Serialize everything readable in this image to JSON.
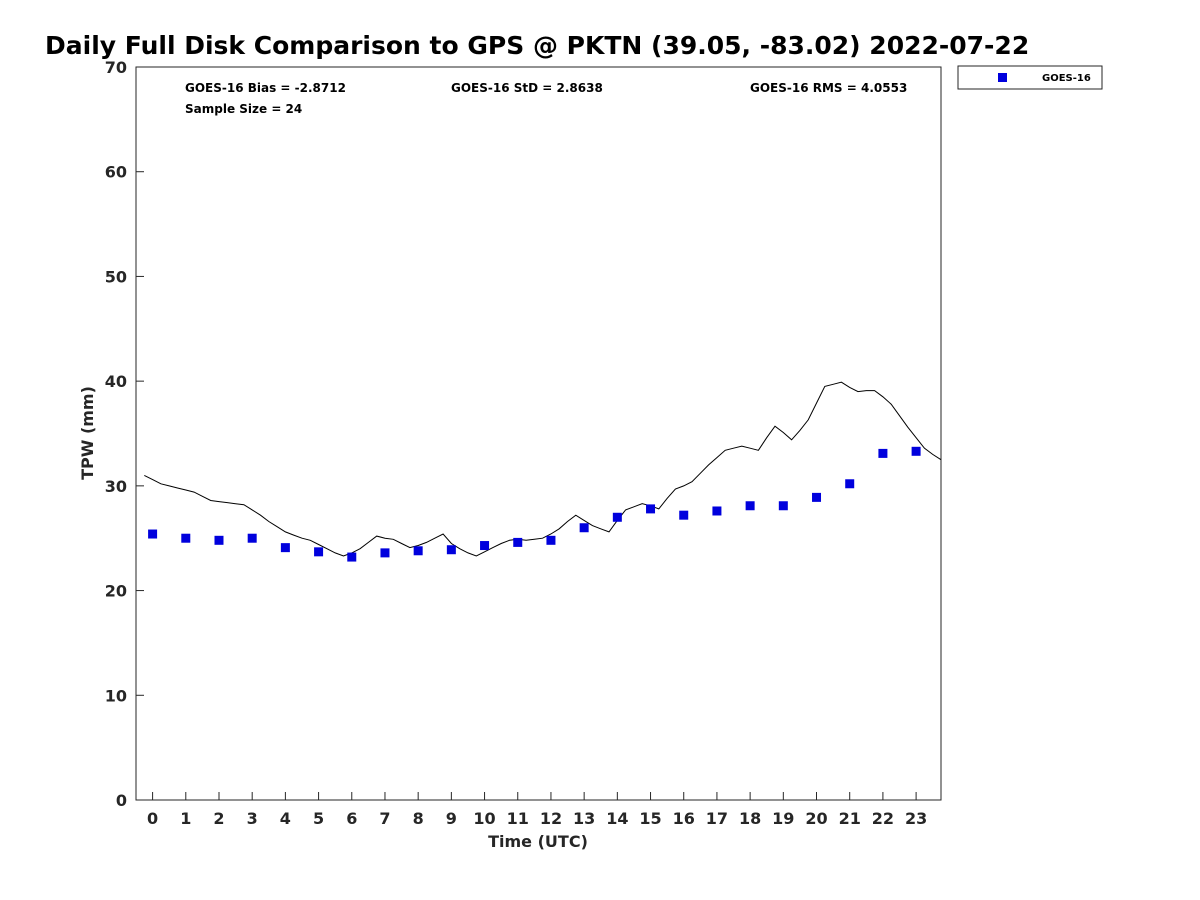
{
  "chart_data": {
    "type": "scatter",
    "title": "Daily Full Disk Comparison to GPS @ PKTN (39.05, -83.02) 2022-07-22",
    "xlabel": "Time (UTC)",
    "ylabel": "TPW (mm)",
    "xlim": [
      -0.5,
      23.75
    ],
    "ylim": [
      0,
      70
    ],
    "x_ticks": [
      0,
      1,
      2,
      3,
      4,
      5,
      6,
      7,
      8,
      9,
      10,
      11,
      12,
      13,
      14,
      15,
      16,
      17,
      18,
      19,
      20,
      21,
      22,
      23
    ],
    "y_ticks": [
      0,
      10,
      20,
      30,
      40,
      50,
      60,
      70
    ],
    "grid": false,
    "legend_position": "outside-top-right",
    "stats": {
      "bias": "GOES-16 Bias = -2.8712",
      "std": "GOES-16 StD = 2.8638",
      "rms": "GOES-16 RMS = 4.0553",
      "sample_size": "Sample Size = 24"
    },
    "series": [
      {
        "name": "GOES-16",
        "marker": "square",
        "color": "#0000dd",
        "x": [
          0,
          1,
          2,
          3,
          4,
          5,
          6,
          7,
          8,
          9,
          10,
          11,
          12,
          13,
          14,
          15,
          16,
          17,
          18,
          19,
          20,
          21,
          22,
          23
        ],
        "values": [
          25.4,
          25.0,
          24.8,
          25.0,
          24.1,
          23.7,
          23.2,
          23.6,
          23.8,
          23.9,
          24.3,
          24.6,
          24.8,
          26.0,
          27.0,
          27.8,
          27.2,
          27.6,
          28.1,
          28.1,
          28.9,
          30.2,
          33.1,
          33.3
        ]
      },
      {
        "marker": "line",
        "color": "#000000",
        "x": [
          -0.25,
          0,
          0.25,
          0.5,
          0.75,
          1,
          1.25,
          1.5,
          1.75,
          2,
          2.25,
          2.5,
          2.75,
          3,
          3.25,
          3.5,
          3.75,
          4,
          4.25,
          4.5,
          4.75,
          5,
          5.25,
          5.5,
          5.75,
          6,
          6.25,
          6.5,
          6.75,
          7,
          7.25,
          7.5,
          7.75,
          8,
          8.25,
          8.5,
          8.75,
          9,
          9.25,
          9.5,
          9.75,
          10,
          10.25,
          10.5,
          10.75,
          11,
          11.25,
          11.5,
          11.75,
          12,
          12.25,
          12.5,
          12.75,
          13,
          13.25,
          13.5,
          13.75,
          14,
          14.25,
          14.5,
          14.75,
          15,
          15.25,
          15.5,
          15.75,
          16,
          16.25,
          16.5,
          16.75,
          17,
          17.25,
          17.5,
          17.75,
          18,
          18.25,
          18.5,
          18.75,
          19,
          19.25,
          19.5,
          19.75,
          20,
          20.25,
          20.5,
          20.75,
          21,
          21.25,
          21.5,
          21.75,
          22,
          22.25,
          22.5,
          22.75,
          23,
          23.25,
          23.5,
          23.75
        ],
        "values": [
          31.0,
          30.6,
          30.2,
          30.0,
          29.8,
          29.6,
          29.4,
          29.0,
          28.6,
          28.5,
          28.4,
          28.3,
          28.2,
          27.7,
          27.2,
          26.6,
          26.1,
          25.6,
          25.3,
          25.0,
          24.8,
          24.4,
          24.0,
          23.6,
          23.3,
          23.6,
          24.0,
          24.6,
          25.2,
          25.0,
          24.9,
          24.5,
          24.1,
          24.3,
          24.6,
          25.0,
          25.4,
          24.5,
          24.0,
          23.6,
          23.3,
          23.7,
          24.1,
          24.5,
          24.8,
          24.9,
          24.8,
          24.9,
          25.0,
          25.4,
          25.9,
          26.6,
          27.2,
          26.7,
          26.2,
          25.9,
          25.6,
          26.7,
          27.7,
          28.0,
          28.3,
          28.1,
          27.8,
          28.8,
          29.7,
          30.0,
          30.4,
          31.2,
          32.0,
          32.7,
          33.4,
          33.6,
          33.8,
          33.6,
          33.4,
          34.6,
          35.7,
          35.1,
          34.4,
          35.3,
          36.3,
          37.9,
          39.5,
          39.7,
          39.9,
          39.4,
          39.0,
          39.1,
          39.1,
          38.5,
          37.8,
          36.7,
          35.6,
          34.6,
          33.6,
          33.0,
          32.5
        ]
      }
    ]
  }
}
